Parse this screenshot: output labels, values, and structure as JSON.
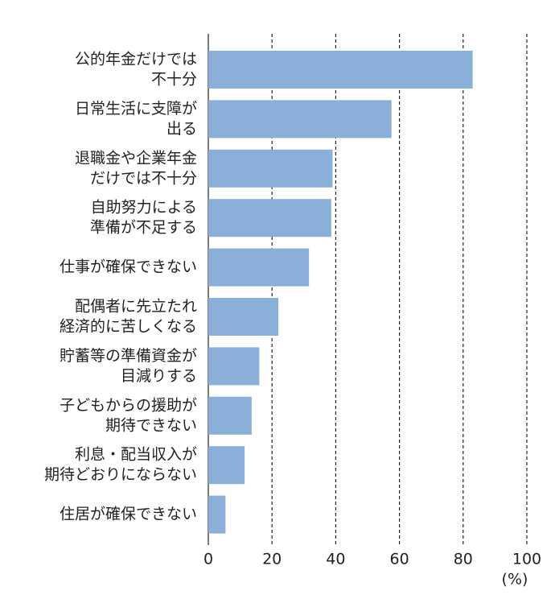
{
  "chart_data": {
    "type": "barh",
    "categories": [
      [
        "公的年金だけでは",
        "不十分"
      ],
      [
        "日常生活に支障が",
        "出る"
      ],
      [
        "退職金や企業年金",
        "だけでは不十分"
      ],
      [
        "自助努力による",
        "準備が不足する"
      ],
      [
        "仕事が確保できない"
      ],
      [
        "配偶者に先立たれ",
        "経済的に苦しくなる"
      ],
      [
        "貯蓄等の準備資金が",
        "目減りする"
      ],
      [
        "子どもからの援助が",
        "期待できない"
      ],
      [
        "利息・配当収入が",
        "期待どおりにならない"
      ],
      [
        "住居が確保できない"
      ]
    ],
    "values": [
      83,
      57.5,
      39,
      38.6,
      31.6,
      22,
      16,
      13.6,
      11.4,
      5.4
    ],
    "color": "#8ab0da",
    "xlim": [
      0,
      100
    ],
    "xticks": [
      0,
      20,
      40,
      60,
      80,
      100
    ],
    "xlabel": "(%)",
    "grid": true
  }
}
